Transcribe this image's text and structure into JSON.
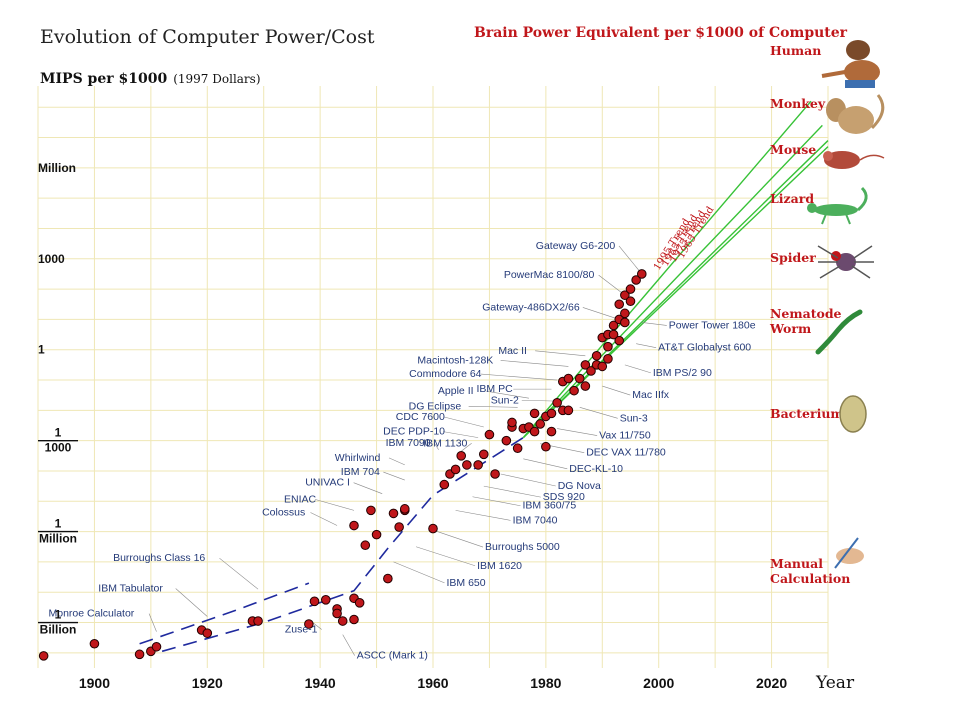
{
  "chart_data": {
    "type": "scatter",
    "title": "Evolution of Computer Power/Cost",
    "ylabel": "MIPS per $1000",
    "ylabel_note": "(1997 Dollars)",
    "xlabel": "Year",
    "xlim": [
      1890,
      2030
    ],
    "y_scale": "log",
    "ylim_log10": [
      -10.5,
      8.7
    ],
    "x_ticks": [
      "1900",
      "1920",
      "1940",
      "1960",
      "1980",
      "2000",
      "2020"
    ],
    "y_ticks": [
      {
        "top": "Million",
        "bottom": "",
        "log10": 6
      },
      {
        "top": "1000",
        "bottom": "",
        "log10": 3
      },
      {
        "top": "1",
        "bottom": "",
        "log10": 0
      },
      {
        "top": "1",
        "bottom": "1000",
        "log10": -3
      },
      {
        "top": "1",
        "bottom": "Million",
        "log10": -6
      },
      {
        "top": "1",
        "bottom": "Billion",
        "log10": -9
      }
    ],
    "grid": true,
    "points": [
      [
        1891,
        -10.1
      ],
      [
        1900,
        -9.7
      ],
      [
        1908,
        -10.05
      ],
      [
        1910,
        -9.95
      ],
      [
        1911,
        -9.8
      ],
      [
        1919,
        -9.25
      ],
      [
        1920,
        -9.35
      ],
      [
        1928,
        -8.95
      ],
      [
        1929,
        -8.95
      ],
      [
        1938,
        -9.05
      ],
      [
        1939,
        -8.3
      ],
      [
        1941,
        -8.25
      ],
      [
        1943,
        -8.55
      ],
      [
        1943,
        -8.7
      ],
      [
        1944,
        -8.95
      ],
      [
        1946,
        -8.2
      ],
      [
        1946,
        -8.9
      ],
      [
        1947,
        -8.35
      ],
      [
        1948,
        -6.45
      ],
      [
        1946,
        -5.8
      ],
      [
        1949,
        -5.3
      ],
      [
        1950,
        -6.1
      ],
      [
        1952,
        -7.55
      ],
      [
        1953,
        -5.4
      ],
      [
        1954,
        -5.85
      ],
      [
        1955,
        -5.3
      ],
      [
        1955,
        -5.25
      ],
      [
        1960,
        -5.9
      ],
      [
        1962,
        -4.45
      ],
      [
        1963,
        -4.1
      ],
      [
        1964,
        -3.95
      ],
      [
        1965,
        -3.5
      ],
      [
        1966,
        -3.8
      ],
      [
        1968,
        -3.8
      ],
      [
        1969,
        -3.45
      ],
      [
        1970,
        -2.8
      ],
      [
        1971,
        -4.1
      ],
      [
        1973,
        -3.0
      ],
      [
        1974,
        -2.55
      ],
      [
        1974,
        -2.4
      ],
      [
        1975,
        -3.25
      ],
      [
        1976,
        -2.6
      ],
      [
        1977,
        -2.55
      ],
      [
        1978,
        -2.1
      ],
      [
        1978,
        -2.7
      ],
      [
        1979,
        -2.45
      ],
      [
        1980,
        -2.2
      ],
      [
        1980,
        -3.2
      ],
      [
        1981,
        -2.7
      ],
      [
        1981,
        -2.1
      ],
      [
        1982,
        -1.75
      ],
      [
        1983,
        -1.05
      ],
      [
        1983,
        -2.0
      ],
      [
        1984,
        -0.95
      ],
      [
        1984,
        -2.0
      ],
      [
        1985,
        -1.35
      ],
      [
        1986,
        -0.95
      ],
      [
        1987,
        -0.5
      ],
      [
        1987,
        -1.2
      ],
      [
        1988,
        -0.7
      ],
      [
        1989,
        -0.2
      ],
      [
        1989,
        -0.5
      ],
      [
        1990,
        0.4
      ],
      [
        1990,
        -0.55
      ],
      [
        1991,
        0.5
      ],
      [
        1991,
        0.1
      ],
      [
        1991,
        -0.3
      ],
      [
        1992,
        0.8
      ],
      [
        1992,
        0.5
      ],
      [
        1993,
        1.0
      ],
      [
        1993,
        1.5
      ],
      [
        1993,
        0.3
      ],
      [
        1994,
        1.8
      ],
      [
        1994,
        1.2
      ],
      [
        1994,
        0.9
      ],
      [
        1995,
        2.0
      ],
      [
        1995,
        1.6
      ],
      [
        1996,
        2.3
      ],
      [
        1997,
        2.5
      ]
    ],
    "annotations": [
      {
        "text": "Gateway G6-200",
        "x": 1997,
        "y": 2.5
      },
      {
        "text": "PowerMac 8100/80",
        "x": 1994,
        "y": 1.8
      },
      {
        "text": "Gateway-486DX2/66",
        "x": 1993,
        "y": 1.0
      },
      {
        "text": "Mac II",
        "x": 1987,
        "y": -0.2
      },
      {
        "text": "Macintosh-128K",
        "x": 1984,
        "y": -0.55
      },
      {
        "text": "Commodore 64",
        "x": 1982,
        "y": -1.0
      },
      {
        "text": "IBM PC",
        "x": 1981,
        "y": -1.3
      },
      {
        "text": "Sun-2",
        "x": 1983,
        "y": -1.7
      },
      {
        "text": "Apple II",
        "x": 1977,
        "y": -1.6
      },
      {
        "text": "DG Eclipse",
        "x": 1975,
        "y": -1.9
      },
      {
        "text": "CDC 7600",
        "x": 1969,
        "y": -2.55
      },
      {
        "text": "DEC PDP-10",
        "x": 1968,
        "y": -2.9
      },
      {
        "text": "IBM 7090",
        "x": 1961,
        "y": -3.3
      },
      {
        "text": "IBM 1130",
        "x": 1965,
        "y": -3.35
      },
      {
        "text": "Whirlwind",
        "x": 1955,
        "y": -3.8
      },
      {
        "text": "IBM 704",
        "x": 1955,
        "y": -4.3
      },
      {
        "text": "UNIVAC I",
        "x": 1951,
        "y": -4.75
      },
      {
        "text": "ENIAC",
        "x": 1946,
        "y": -5.3
      },
      {
        "text": "Colossus",
        "x": 1943,
        "y": -5.8
      },
      {
        "text": "Burroughs Class 16",
        "x": 1929,
        "y": -7.9
      },
      {
        "text": "IBM Tabulator",
        "x": 1920,
        "y": -8.8
      },
      {
        "text": "Monroe Calculator",
        "x": 1911,
        "y": -9.3
      },
      {
        "text": "Zuse-1",
        "x": 1938,
        "y": -8.9
      },
      {
        "text": "ASCC (Mark 1)",
        "x": 1944,
        "y": -9.4
      },
      {
        "text": "Power Tower 180e",
        "x": 1997,
        "y": 0.9
      },
      {
        "text": "AT&T Globalyst 600",
        "x": 1996,
        "y": 0.2
      },
      {
        "text": "IBM PS/2 90",
        "x": 1994,
        "y": -0.5
      },
      {
        "text": "Mac IIfx",
        "x": 1990,
        "y": -1.2
      },
      {
        "text": "Sun-3",
        "x": 1986,
        "y": -1.9
      },
      {
        "text": "Vax 11/750",
        "x": 1982,
        "y": -2.6
      },
      {
        "text": "DEC VAX 11/780",
        "x": 1979,
        "y": -3.1
      },
      {
        "text": "DEC-KL-10",
        "x": 1976,
        "y": -3.6
      },
      {
        "text": "DG Nova",
        "x": 1972,
        "y": -4.1
      },
      {
        "text": "SDS 920",
        "x": 1969,
        "y": -4.5
      },
      {
        "text": "IBM 360/75",
        "x": 1967,
        "y": -4.85
      },
      {
        "text": "IBM 7040",
        "x": 1964,
        "y": -5.3
      },
      {
        "text": "Burroughs 5000",
        "x": 1960,
        "y": -5.95
      },
      {
        "text": "IBM 1620",
        "x": 1957,
        "y": -6.5
      },
      {
        "text": "IBM 650",
        "x": 1953,
        "y": -7.0
      }
    ],
    "trend_lines": [
      {
        "name": "1995 Trend",
        "from": [
          1976,
          -2.9
        ],
        "to": [
          2027,
          8.2
        ]
      },
      {
        "name": "1985 Trend",
        "from": [
          1976,
          -2.9
        ],
        "to": [
          2029,
          7.4
        ]
      },
      {
        "name": "1975 Trend",
        "from": [
          1976,
          -2.9
        ],
        "to": [
          2030,
          6.9
        ]
      },
      {
        "name": "1965 Trend",
        "from": [
          1976,
          -2.9
        ],
        "to": [
          2030,
          6.7
        ]
      }
    ],
    "early_trend": [
      [
        1908,
        -9.7
      ],
      [
        1925,
        -8.6
      ],
      [
        1938,
        -7.7
      ]
    ],
    "early_trend2": [
      [
        1912,
        -9.95
      ],
      [
        1930,
        -9.0
      ],
      [
        1946,
        -7.95
      ],
      [
        1952,
        -6.55
      ],
      [
        1960,
        -4.8
      ],
      [
        1976,
        -2.9
      ]
    ],
    "right_panel": {
      "title": "Brain Power Equivalent per $1000 of Computer",
      "creatures": [
        {
          "label": "Human"
        },
        {
          "label": "Monkey"
        },
        {
          "label": "Mouse"
        },
        {
          "label": "Lizard"
        },
        {
          "label": "Spider"
        },
        {
          "label": "Nematode"
        },
        {
          "label": "Worm"
        },
        {
          "label": "Bacterium"
        },
        {
          "label": "Manual"
        },
        {
          "label": "Calculation"
        }
      ]
    },
    "colors": {
      "points": "#c0171b",
      "trend_green": "#37c237",
      "early_trend": "#1f2a9e",
      "creature_text": "#c0171b",
      "grid": "#efe7b5"
    }
  }
}
